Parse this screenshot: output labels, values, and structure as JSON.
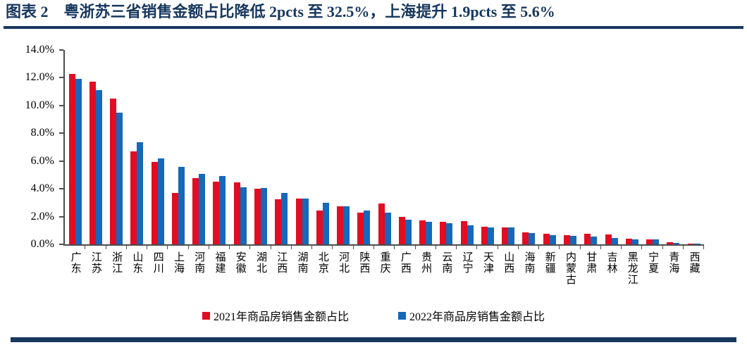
{
  "header": {
    "title": "图表 2　粤浙苏三省销售金额占比降低 2pcts 至 32.5%，上海提升 1.9pcts 至 5.6%"
  },
  "colors": {
    "accent_navy": "#17375E",
    "axis_gray": "#4d4d4d",
    "series_2021": "#E20D22",
    "series_2022": "#1568BA"
  },
  "chart_data": {
    "type": "bar",
    "title": "图表 2　粤浙苏三省销售金额占比降低 2pcts 至 32.5%，上海提升 1.9pcts 至 5.6%",
    "xlabel": "",
    "ylabel": "",
    "ylim": [
      0,
      14
    ],
    "grid": "off",
    "legend_position": "bottom",
    "y_ticks": [
      "14.0%",
      "12.0%",
      "10.0%",
      "8.0%",
      "6.0%",
      "4.0%",
      "2.0%",
      "0.0%"
    ],
    "categories": [
      "广东",
      "江苏",
      "浙江",
      "山东",
      "四川",
      "上海",
      "河南",
      "福建",
      "安徽",
      "湖北",
      "江西",
      "湖南",
      "北京",
      "河北",
      "陕西",
      "重庆",
      "广西",
      "贵州",
      "云南",
      "辽宁",
      "天津",
      "山西",
      "海南",
      "新疆",
      "内蒙古",
      "甘肃",
      "吉林",
      "黑龙江",
      "宁夏",
      "青海",
      "西藏"
    ],
    "series": [
      {
        "name": "2021年商品房销售金额占比",
        "color_key": "series_2021",
        "values": [
          12.3,
          11.7,
          10.5,
          6.7,
          5.95,
          3.7,
          4.75,
          4.5,
          4.45,
          4.0,
          3.25,
          3.3,
          2.45,
          2.75,
          2.3,
          2.95,
          2.0,
          1.75,
          1.6,
          1.7,
          1.25,
          1.2,
          0.85,
          0.75,
          0.65,
          0.75,
          0.7,
          0.4,
          0.35,
          0.15,
          0.05
        ]
      },
      {
        "name": "2022年商品房销售金额占比",
        "color_key": "series_2022",
        "values": [
          11.9,
          11.1,
          9.5,
          7.35,
          6.2,
          5.6,
          5.05,
          4.9,
          4.1,
          4.05,
          3.7,
          3.3,
          3.0,
          2.75,
          2.45,
          2.3,
          1.8,
          1.6,
          1.5,
          1.35,
          1.2,
          1.2,
          0.8,
          0.65,
          0.6,
          0.55,
          0.45,
          0.35,
          0.35,
          0.1,
          0.03
        ]
      }
    ]
  }
}
